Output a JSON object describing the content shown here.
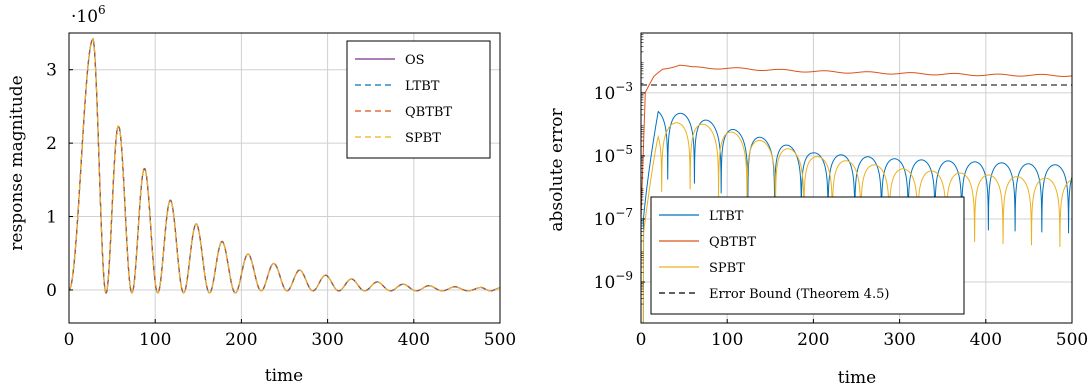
{
  "chart_data": [
    {
      "type": "line",
      "xlabel": "time",
      "ylabel": "response magnitude",
      "scale_label": "·10",
      "scale_exp": "6",
      "xlim": [
        0,
        500
      ],
      "ylim": [
        -0.45,
        3.5
      ],
      "y_scale": "linear",
      "grid": true,
      "legend_position": "top-right",
      "xticks": [
        "0",
        "100",
        "200",
        "300",
        "400",
        "500"
      ],
      "yticks": [
        "0",
        "1",
        "2",
        "3"
      ],
      "peaks": {
        "t": [
          0,
          28,
          58,
          88,
          118,
          148,
          178,
          208,
          238,
          268,
          298,
          328,
          358,
          388,
          418,
          448,
          478,
          500
        ],
        "v": [
          0,
          3.42,
          2.22,
          1.65,
          1.22,
          0.9,
          0.66,
          0.49,
          0.36,
          0.27,
          0.2,
          0.15,
          0.11,
          0.08,
          0.06,
          0.045,
          0.035,
          0.03
        ]
      },
      "series": [
        {
          "name": "OS",
          "color": "#7e2f8e",
          "dash": "solid"
        },
        {
          "name": "LTBT",
          "color": "#0072bd",
          "dash": "dashed"
        },
        {
          "name": "QBTBT",
          "color": "#d95319",
          "dash": "dashed"
        },
        {
          "name": "SPBT",
          "color": "#edb120",
          "dash": "dashed"
        }
      ]
    },
    {
      "type": "line",
      "xlabel": "time",
      "ylabel": "absolute error",
      "xlim": [
        0,
        500
      ],
      "y_scale": "log",
      "ylim_log10": [
        -10.3,
        -1.1
      ],
      "grid": true,
      "legend_position": "bottom-left",
      "xticks": [
        "0",
        "100",
        "200",
        "300",
        "400",
        "500"
      ],
      "yticks": [
        {
          "base": "10",
          "exp": "−3",
          "log10": -3
        },
        {
          "base": "10",
          "exp": "−5",
          "log10": -5
        },
        {
          "base": "10",
          "exp": "−7",
          "log10": -7
        },
        {
          "base": "10",
          "exp": "−9",
          "log10": -9
        }
      ],
      "series": [
        {
          "name": "LTBT",
          "color": "#0072bd",
          "dash": "solid",
          "envelope": {
            "t": [
              0,
              20,
              60,
              100,
              150,
              200,
              300,
              400,
              500
            ],
            "log10": [
              -7,
              -3.55,
              -3.7,
              -4.1,
              -4.5,
              -4.9,
              -5.1,
              -5.2,
              -5.3
            ]
          }
        },
        {
          "name": "QBTBT",
          "color": "#d95319",
          "dash": "solid",
          "envelope": {
            "t": [
              0,
              5,
              15,
              25,
              45,
              60,
              100,
              200,
              300,
              400,
              500
            ],
            "log10": [
              -7,
              -3,
              -2.5,
              -2.25,
              -2.1,
              -2.2,
              -2.22,
              -2.32,
              -2.38,
              -2.43,
              -2.45
            ]
          }
        },
        {
          "name": "SPBT",
          "color": "#edb120",
          "dash": "solid",
          "envelope": {
            "t": [
              0,
              20,
              60,
              100,
              150,
              200,
              300,
              400,
              500
            ],
            "log10": [
              -8,
              -4.0,
              -3.9,
              -4.2,
              -4.6,
              -5.0,
              -5.4,
              -5.6,
              -5.75
            ]
          }
        },
        {
          "name": "Error Bound (Theorem 4.5)",
          "color": "#000000",
          "dash": "dashed",
          "constant_log10": -2.75
        }
      ]
    }
  ]
}
